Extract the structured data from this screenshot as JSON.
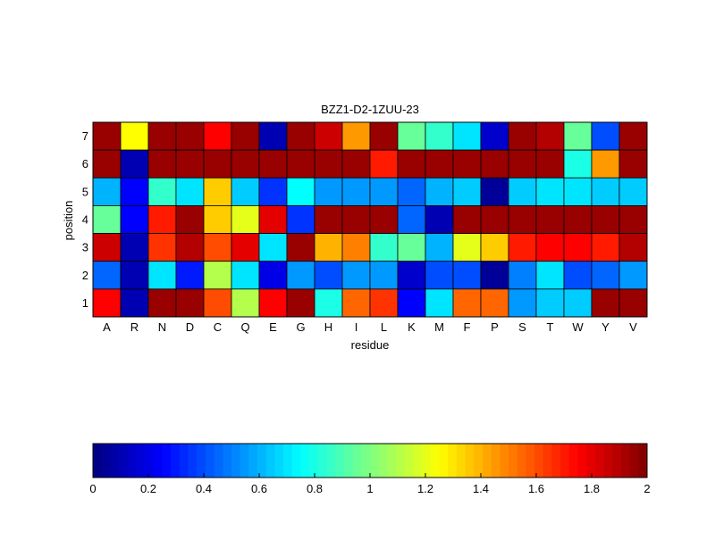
{
  "chart_data": [
    {
      "type": "heatmap",
      "title": "BZZ1-D2-1ZUU-23",
      "xlabel": "residue",
      "ylabel": "position",
      "x_categories": [
        "A",
        "R",
        "N",
        "D",
        "C",
        "Q",
        "E",
        "G",
        "H",
        "I",
        "L",
        "K",
        "M",
        "F",
        "P",
        "S",
        "T",
        "W",
        "Y",
        "V"
      ],
      "y_categories": [
        "7",
        "6",
        "5",
        "4",
        "3",
        "2",
        "1"
      ],
      "colormap": "jet",
      "clim": [
        0,
        2
      ],
      "values": [
        [
          1.95,
          1.25,
          1.95,
          1.95,
          1.75,
          1.95,
          0.1,
          1.95,
          1.85,
          1.45,
          1.95,
          0.95,
          0.85,
          0.7,
          0.15,
          1.95,
          1.9,
          0.95,
          0.4,
          1.95
        ],
        [
          1.95,
          0.1,
          1.95,
          1.95,
          1.95,
          1.95,
          1.95,
          1.95,
          1.95,
          1.95,
          1.7,
          1.95,
          1.95,
          1.95,
          1.95,
          1.95,
          1.95,
          0.8,
          1.45,
          1.95
        ],
        [
          0.6,
          0.25,
          0.85,
          0.7,
          1.35,
          0.65,
          0.35,
          0.75,
          0.55,
          0.55,
          0.55,
          0.45,
          0.6,
          0.65,
          0.05,
          0.65,
          0.7,
          0.7,
          0.65,
          0.65
        ],
        [
          0.95,
          0.25,
          1.7,
          1.95,
          1.35,
          1.2,
          1.8,
          0.35,
          1.95,
          1.95,
          1.95,
          0.45,
          0.1,
          1.95,
          1.95,
          1.95,
          1.95,
          1.95,
          1.95,
          1.95
        ],
        [
          1.85,
          0.1,
          1.65,
          1.9,
          1.6,
          1.8,
          0.7,
          1.95,
          1.4,
          1.5,
          0.85,
          0.95,
          0.6,
          1.2,
          1.35,
          1.7,
          1.75,
          1.75,
          1.7,
          1.9
        ],
        [
          0.45,
          0.1,
          0.7,
          0.3,
          1.1,
          0.7,
          0.2,
          0.55,
          0.4,
          0.55,
          0.55,
          0.15,
          0.4,
          0.4,
          0.05,
          0.5,
          0.7,
          0.4,
          0.45,
          0.55
        ],
        [
          1.75,
          0.1,
          1.95,
          1.95,
          1.6,
          1.1,
          1.75,
          1.95,
          0.8,
          1.55,
          1.65,
          0.25,
          0.7,
          1.55,
          1.55,
          0.55,
          0.65,
          0.65,
          1.95,
          1.95
        ]
      ]
    },
    {
      "type": "colorbar",
      "range": [
        0,
        2
      ],
      "ticks": [
        "0",
        "0.2",
        "0.4",
        "0.6",
        "0.8",
        "1",
        "1.2",
        "1.4",
        "1.6",
        "1.8",
        "2"
      ]
    }
  ]
}
